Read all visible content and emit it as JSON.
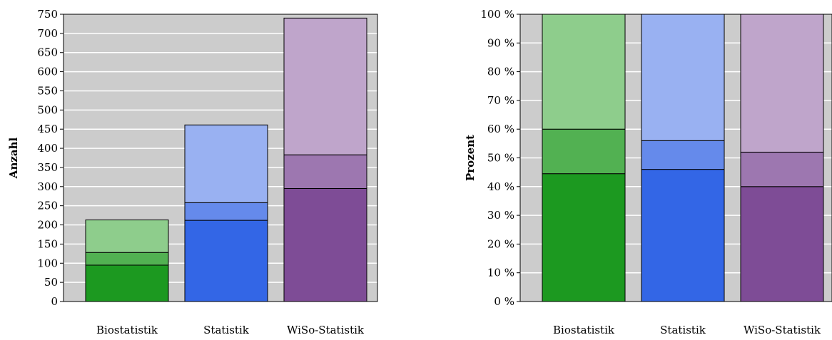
{
  "chart_data": [
    {
      "type": "bar",
      "stacked": true,
      "categories": [
        "Biostatistik",
        "Statistik",
        "WiSo-Statistik"
      ],
      "series": [
        {
          "values": [
            95,
            212,
            295
          ]
        },
        {
          "values": [
            33,
            46,
            88
          ]
        },
        {
          "values": [
            85,
            203,
            357
          ]
        }
      ],
      "colors": [
        [
          "#1c9920",
          "#52b152",
          "#8ecd8c"
        ],
        [
          "#3366e6",
          "#658aeb",
          "#99b1f2"
        ],
        [
          "#7e4c96",
          "#9d77b0",
          "#bfa5cb"
        ]
      ],
      "xlabel": "",
      "ylabel": "Anzahl",
      "ylim": [
        0,
        750
      ],
      "yticks": [
        "0",
        "50",
        "100",
        "150",
        "200",
        "250",
        "300",
        "350",
        "400",
        "450",
        "500",
        "550",
        "600",
        "650",
        "700",
        "750"
      ],
      "grid": true,
      "background": "#cccccc"
    },
    {
      "type": "bar",
      "stacked": true,
      "percent": true,
      "categories": [
        "Biostatistik",
        "Statistik",
        "WiSo-Statistik"
      ],
      "series": [
        {
          "values": [
            44.5,
            46,
            40
          ]
        },
        {
          "values": [
            15.5,
            10,
            12
          ]
        },
        {
          "values": [
            40,
            44,
            48
          ]
        }
      ],
      "colors": [
        [
          "#1c9920",
          "#52b152",
          "#8ecd8c"
        ],
        [
          "#3366e6",
          "#658aeb",
          "#99b1f2"
        ],
        [
          "#7e4c96",
          "#9d77b0",
          "#bfa5cb"
        ]
      ],
      "xlabel": "",
      "ylabel": "Prozent",
      "ylim": [
        0,
        100
      ],
      "yticks": [
        "0 %",
        "10 %",
        "20 %",
        "30 %",
        "40 %",
        "50 %",
        "60 %",
        "70 %",
        "80 %",
        "90 %",
        "100 %"
      ],
      "grid": true,
      "background": "#cccccc"
    }
  ]
}
